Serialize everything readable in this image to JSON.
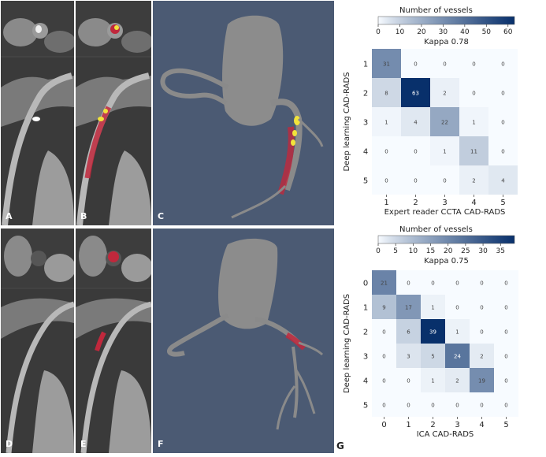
{
  "panels": {
    "A": "A",
    "B": "B",
    "C": "C",
    "D": "D",
    "E": "E",
    "F": "F",
    "G": "G"
  },
  "colors": {
    "heat_low": "#f7fbff",
    "heat_high": "#08306b",
    "plaque_red": "#c0283c",
    "calc_yellow": "#f2e33b",
    "render_bg": "#4b5a73"
  },
  "chart_data": [
    {
      "type": "heatmap",
      "title": "Kappa 0.78",
      "colorbar_label": "Number of vessels",
      "colorbar_ticks": [
        0,
        10,
        20,
        30,
        40,
        50,
        60
      ],
      "colorbar_range": [
        0,
        63
      ],
      "xlabel": "Expert reader CCTA CAD-RADS",
      "ylabel": "Deep learning CAD-RADS",
      "x_categories": [
        "1",
        "2",
        "3",
        "4",
        "5"
      ],
      "y_categories": [
        "1",
        "2",
        "3",
        "4",
        "5"
      ],
      "values": [
        [
          31,
          0,
          0,
          0,
          0
        ],
        [
          8,
          63,
          2,
          0,
          0
        ],
        [
          1,
          4,
          22,
          1,
          0
        ],
        [
          0,
          0,
          1,
          11,
          0
        ],
        [
          0,
          0,
          0,
          2,
          4
        ]
      ]
    },
    {
      "type": "heatmap",
      "title": "Kappa 0.75",
      "colorbar_label": "Number of vessels",
      "colorbar_ticks": [
        0,
        5,
        10,
        15,
        20,
        25,
        30,
        35
      ],
      "colorbar_range": [
        0,
        39
      ],
      "xlabel": "ICA CAD-RADS",
      "ylabel": "Deep learning CAD-RADS",
      "x_categories": [
        "0",
        "1",
        "2",
        "3",
        "4",
        "5"
      ],
      "y_categories": [
        "0",
        "1",
        "2",
        "3",
        "4",
        "5"
      ],
      "values": [
        [
          21,
          0,
          0,
          0,
          0,
          0
        ],
        [
          9,
          17,
          1,
          0,
          0,
          0
        ],
        [
          0,
          6,
          39,
          1,
          0,
          0
        ],
        [
          0,
          3,
          5,
          24,
          2,
          0
        ],
        [
          0,
          0,
          1,
          2,
          19,
          0
        ],
        [
          0,
          0,
          0,
          0,
          0,
          0
        ]
      ]
    }
  ]
}
